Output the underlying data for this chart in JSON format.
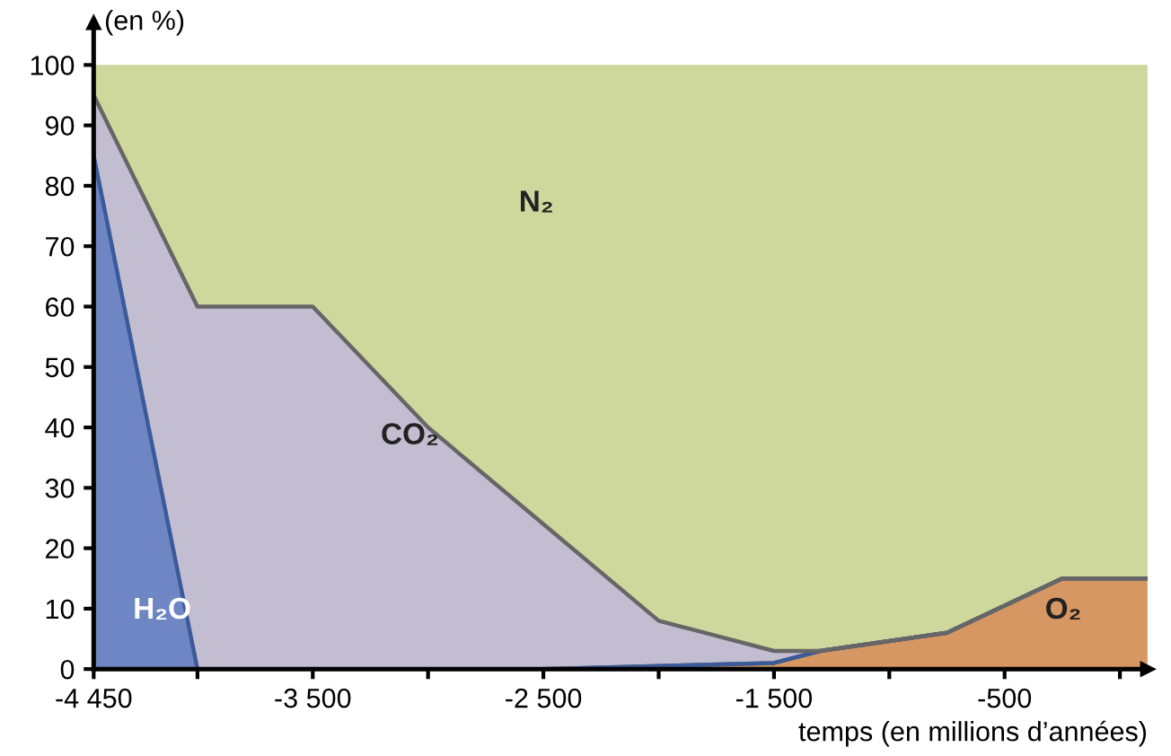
{
  "chart_data": {
    "type": "area",
    "stacked": true,
    "ylabel": "(en %)",
    "xlabel": "temps (en millions d’années)",
    "xlim": [
      -4450,
      120
    ],
    "ylim": [
      0,
      107
    ],
    "xticks": [
      -4450,
      {
        "value": -4000,
        "label": null
      },
      -3500,
      {
        "value": -3000,
        "label": null
      },
      -2500,
      {
        "value": -2000,
        "label": null
      },
      -1500,
      {
        "value": -1000,
        "label": null
      },
      -500,
      {
        "value": 0,
        "label": null
      }
    ],
    "yticks": [
      0,
      10,
      20,
      30,
      40,
      50,
      60,
      70,
      80,
      90,
      100
    ],
    "x": [
      -4450,
      -4000,
      -3500,
      -3000,
      -2500,
      -2000,
      -1500,
      -1300,
      -750,
      -250,
      120
    ],
    "grid": false,
    "legend": false,
    "series": [
      {
        "name": "O₂",
        "color": "#d69763",
        "values": [
          0,
          0,
          0,
          0,
          0,
          0.5,
          1,
          3,
          6,
          15,
          15
        ]
      },
      {
        "name": "H₂O",
        "color": "#6f86c4",
        "values": [
          85,
          0,
          0,
          0,
          0,
          0,
          0,
          0,
          0,
          0,
          0
        ]
      },
      {
        "name": "CO₂",
        "color": "#c2bdd1",
        "values": [
          10,
          60,
          60,
          40,
          24,
          7.5,
          2,
          0,
          0,
          0,
          0
        ]
      },
      {
        "name": "N₂",
        "color": "#cfd89c",
        "values": [
          5,
          40,
          40,
          60,
          76,
          92,
          97,
          97,
          94,
          85,
          85
        ]
      }
    ]
  }
}
